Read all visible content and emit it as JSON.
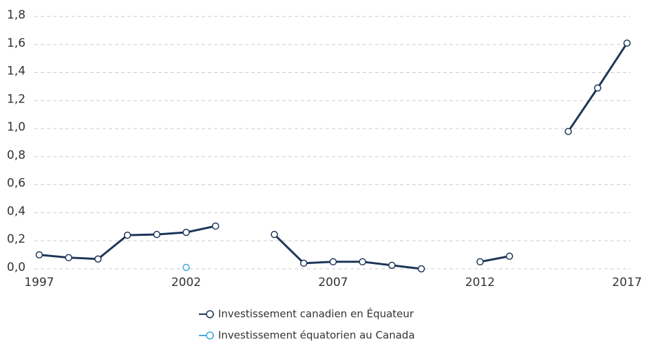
{
  "chart_data": {
    "type": "line",
    "x": [
      1997,
      1998,
      1999,
      2000,
      2001,
      2002,
      2003,
      2004,
      2005,
      2006,
      2007,
      2008,
      2009,
      2010,
      2011,
      2012,
      2013,
      2014,
      2015,
      2016,
      2017
    ],
    "series": [
      {
        "name": "Investissement canadien en Équateur",
        "color": "#1d3557",
        "values": [
          0.1,
          0.08,
          0.07,
          0.24,
          0.245,
          0.26,
          0.305,
          null,
          0.245,
          0.04,
          0.05,
          0.05,
          0.025,
          0.0,
          null,
          0.05,
          0.09,
          null,
          0.98,
          1.29,
          1.61
        ]
      },
      {
        "name": "Investissement équatorien au Canada",
        "color": "#3fa9df",
        "values": [
          null,
          null,
          null,
          null,
          null,
          0.01,
          null,
          null,
          null,
          null,
          null,
          null,
          null,
          null,
          null,
          null,
          null,
          null,
          null,
          null,
          null
        ]
      }
    ],
    "xlim": [
      1997,
      2017
    ],
    "xticks": [
      1997,
      2002,
      2007,
      2012,
      2017
    ],
    "ylim": [
      0,
      1.8
    ],
    "yticks": [
      {
        "value": 0,
        "label": "0,0"
      },
      {
        "value": 0.2,
        "label": "0,2"
      },
      {
        "value": 0.4,
        "label": "0,4"
      },
      {
        "value": 0.6,
        "label": "0,6"
      },
      {
        "value": 0.8,
        "label": "0,8"
      },
      {
        "value": 1.0,
        "label": "1,0"
      },
      {
        "value": 1.2,
        "label": "1,2"
      },
      {
        "value": 1.4,
        "label": "1,4"
      },
      {
        "value": 1.6,
        "label": "1,6"
      },
      {
        "value": 1.8,
        "label": "1,8"
      }
    ],
    "grid": true
  }
}
